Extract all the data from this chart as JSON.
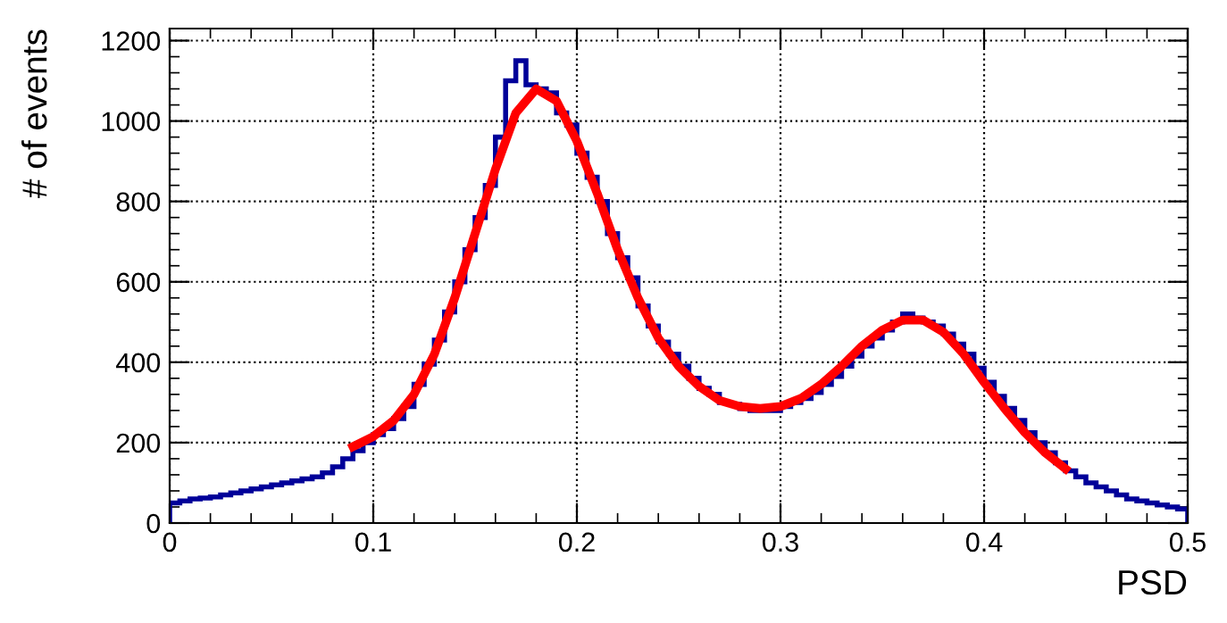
{
  "chart_data": {
    "type": "histogram",
    "xlabel": "PSD",
    "ylabel": "# of events",
    "bins": [
      0.0,
      0.005,
      0.01,
      0.015,
      0.02,
      0.025,
      0.03,
      0.035,
      0.04,
      0.045,
      0.05,
      0.055,
      0.06,
      0.065,
      0.07,
      0.075,
      0.08,
      0.085,
      0.09,
      0.095,
      0.1,
      0.105,
      0.11,
      0.115,
      0.12,
      0.125,
      0.13,
      0.135,
      0.14,
      0.145,
      0.15,
      0.155,
      0.16,
      0.165,
      0.17,
      0.175,
      0.18,
      0.185,
      0.19,
      0.195,
      0.2,
      0.205,
      0.21,
      0.215,
      0.22,
      0.225,
      0.23,
      0.235,
      0.24,
      0.245,
      0.25,
      0.255,
      0.26,
      0.265,
      0.27,
      0.275,
      0.28,
      0.285,
      0.29,
      0.295,
      0.3,
      0.305,
      0.31,
      0.315,
      0.32,
      0.325,
      0.33,
      0.335,
      0.34,
      0.345,
      0.35,
      0.355,
      0.36,
      0.365,
      0.37,
      0.375,
      0.38,
      0.385,
      0.39,
      0.395,
      0.4,
      0.405,
      0.41,
      0.415,
      0.42,
      0.425,
      0.43,
      0.435,
      0.44,
      0.445,
      0.45,
      0.455,
      0.46,
      0.465,
      0.47,
      0.475,
      0.48,
      0.485,
      0.49,
      0.495,
      0.5
    ],
    "series": [
      {
        "color": "#000099",
        "values": [
          50,
          55,
          60,
          62,
          65,
          70,
          75,
          80,
          85,
          90,
          95,
          100,
          105,
          110,
          115,
          125,
          140,
          160,
          180,
          200,
          220,
          235,
          260,
          290,
          345,
          395,
          455,
          525,
          600,
          680,
          760,
          840,
          960,
          1100,
          1150,
          1090,
          1080,
          1070,
          1020,
          990,
          920,
          860,
          800,
          720,
          660,
          610,
          540,
          490,
          450,
          420,
          390,
          360,
          335,
          320,
          300,
          295,
          285,
          280,
          280,
          280,
          290,
          300,
          310,
          325,
          345,
          365,
          390,
          415,
          440,
          460,
          480,
          500,
          520,
          510,
          500,
          490,
          470,
          445,
          420,
          385,
          350,
          315,
          285,
          255,
          225,
          200,
          175,
          150,
          130,
          115,
          100,
          90,
          80,
          70,
          60,
          55,
          50,
          45,
          40,
          35
        ]
      },
      {
        "type": "line",
        "color": "#ff0000",
        "x": [
          0.09,
          0.1,
          0.11,
          0.12,
          0.13,
          0.14,
          0.15,
          0.16,
          0.17,
          0.18,
          0.19,
          0.2,
          0.21,
          0.22,
          0.23,
          0.24,
          0.25,
          0.26,
          0.27,
          0.28,
          0.29,
          0.3,
          0.31,
          0.32,
          0.33,
          0.34,
          0.35,
          0.36,
          0.37,
          0.38,
          0.39,
          0.4,
          0.41,
          0.42,
          0.43,
          0.44
        ],
        "values": [
          190,
          215,
          255,
          320,
          420,
          560,
          720,
          880,
          1020,
          1080,
          1050,
          950,
          820,
          680,
          560,
          460,
          390,
          340,
          305,
          290,
          285,
          290,
          310,
          345,
          390,
          440,
          480,
          505,
          505,
          475,
          420,
          350,
          285,
          225,
          175,
          135
        ]
      }
    ],
    "xlim": [
      0,
      0.5
    ],
    "xticks": [
      0,
      0.1,
      0.2,
      0.3,
      0.4,
      0.5
    ],
    "ylim": [
      0,
      1230
    ],
    "yticks": [
      0,
      200,
      400,
      600,
      800,
      1000,
      1200
    ],
    "grid": true
  }
}
